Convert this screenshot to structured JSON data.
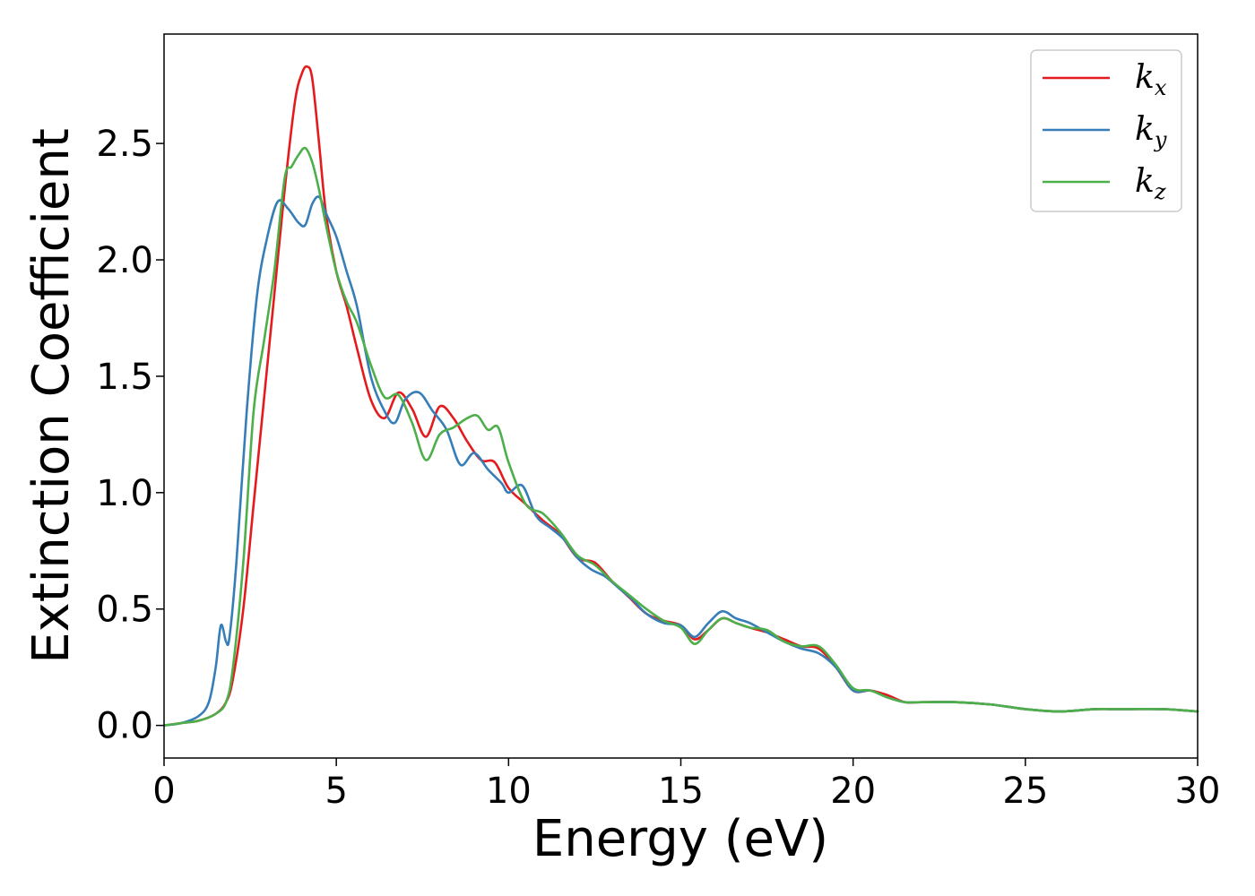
{
  "chart_data": {
    "type": "line",
    "title": "",
    "xlabel": "Energy (eV)",
    "ylabel": "Extinction Coefficient",
    "xlim": [
      0,
      30
    ],
    "ylim": [
      -0.14,
      2.97
    ],
    "xticks": [
      0,
      5,
      10,
      15,
      20,
      25,
      30
    ],
    "xtick_labels": [
      "0",
      "5",
      "10",
      "15",
      "20",
      "25",
      "30"
    ],
    "yticks": [
      0.0,
      0.5,
      1.0,
      1.5,
      2.0,
      2.5
    ],
    "ytick_labels": [
      "0.0",
      "0.5",
      "1.0",
      "1.5",
      "2.0",
      "2.5"
    ],
    "grid": false,
    "legend_position": "top-right",
    "series": [
      {
        "name": "k",
        "subscript": "x",
        "color": "#e41a1c",
        "x": [
          0,
          0.5,
          1.0,
          1.5,
          1.8,
          2.0,
          2.3,
          2.6,
          2.9,
          3.2,
          3.5,
          3.8,
          4.0,
          4.15,
          4.3,
          4.5,
          4.7,
          5.0,
          5.3,
          5.6,
          6.0,
          6.4,
          6.8,
          7.2,
          7.6,
          8.0,
          8.4,
          8.8,
          9.2,
          9.6,
          10.0,
          10.5,
          11.0,
          11.5,
          12.0,
          12.5,
          13.0,
          13.5,
          14.0,
          14.5,
          15.0,
          15.4,
          15.8,
          16.2,
          16.6,
          17.0,
          17.5,
          18.0,
          18.5,
          19.0,
          19.5,
          20.0,
          20.5,
          21.0,
          21.5,
          22.0,
          23.0,
          24.0,
          25.0,
          26.0,
          27.0,
          27.5,
          28.0,
          29.0,
          30.0
        ],
        "y": [
          0.0,
          0.01,
          0.02,
          0.05,
          0.1,
          0.2,
          0.5,
          0.95,
          1.4,
          1.85,
          2.3,
          2.68,
          2.8,
          2.83,
          2.78,
          2.5,
          2.2,
          1.95,
          1.8,
          1.62,
          1.4,
          1.32,
          1.43,
          1.36,
          1.24,
          1.37,
          1.32,
          1.22,
          1.14,
          1.13,
          1.02,
          0.95,
          0.88,
          0.82,
          0.72,
          0.7,
          0.62,
          0.55,
          0.48,
          0.45,
          0.43,
          0.37,
          0.41,
          0.46,
          0.44,
          0.42,
          0.4,
          0.37,
          0.34,
          0.33,
          0.25,
          0.15,
          0.15,
          0.13,
          0.1,
          0.1,
          0.1,
          0.09,
          0.07,
          0.06,
          0.07,
          0.07,
          0.07,
          0.07,
          0.06
        ]
      },
      {
        "name": "k",
        "subscript": "y",
        "color": "#377eb8",
        "x": [
          0,
          0.5,
          1.0,
          1.3,
          1.5,
          1.65,
          1.8,
          1.9,
          2.1,
          2.4,
          2.7,
          3.0,
          3.3,
          3.6,
          3.9,
          4.1,
          4.3,
          4.5,
          4.7,
          5.0,
          5.3,
          5.6,
          6.0,
          6.4,
          6.7,
          7.0,
          7.4,
          7.8,
          8.2,
          8.6,
          9.0,
          9.4,
          9.8,
          10.0,
          10.4,
          10.8,
          11.2,
          11.6,
          12.0,
          12.4,
          12.8,
          13.2,
          13.6,
          14.0,
          14.5,
          15.0,
          15.4,
          15.8,
          16.2,
          16.6,
          17.0,
          17.5,
          18.0,
          18.5,
          19.0,
          19.5,
          20.0,
          20.5,
          21.0,
          21.5,
          22.0,
          23.0,
          24.0,
          25.0,
          26.0,
          27.0,
          27.5,
          28.0,
          29.0,
          30.0
        ],
        "y": [
          0.0,
          0.01,
          0.04,
          0.1,
          0.25,
          0.43,
          0.36,
          0.38,
          0.7,
          1.35,
          1.85,
          2.1,
          2.25,
          2.22,
          2.16,
          2.15,
          2.24,
          2.27,
          2.2,
          2.1,
          1.95,
          1.8,
          1.5,
          1.35,
          1.3,
          1.4,
          1.43,
          1.35,
          1.27,
          1.12,
          1.17,
          1.1,
          1.04,
          1.0,
          1.03,
          0.9,
          0.85,
          0.8,
          0.72,
          0.67,
          0.64,
          0.59,
          0.54,
          0.48,
          0.44,
          0.43,
          0.38,
          0.44,
          0.49,
          0.46,
          0.44,
          0.4,
          0.36,
          0.33,
          0.31,
          0.25,
          0.15,
          0.15,
          0.12,
          0.1,
          0.1,
          0.1,
          0.09,
          0.07,
          0.06,
          0.07,
          0.07,
          0.07,
          0.07,
          0.06
        ]
      },
      {
        "name": "k",
        "subscript": "z",
        "color": "#4daf4a",
        "x": [
          0,
          0.5,
          1.0,
          1.5,
          1.8,
          2.0,
          2.3,
          2.6,
          2.9,
          3.2,
          3.5,
          3.7,
          3.9,
          4.1,
          4.3,
          4.5,
          4.7,
          5.0,
          5.3,
          5.6,
          6.0,
          6.4,
          6.8,
          7.2,
          7.6,
          8.0,
          8.4,
          8.8,
          9.1,
          9.4,
          9.7,
          10.0,
          10.5,
          11.0,
          11.5,
          12.0,
          12.5,
          13.0,
          13.5,
          14.0,
          14.5,
          15.0,
          15.4,
          15.8,
          16.2,
          16.6,
          17.0,
          17.5,
          18.0,
          18.5,
          19.0,
          19.5,
          20.0,
          20.5,
          21.0,
          21.5,
          22.0,
          23.0,
          24.0,
          25.0,
          26.0,
          27.0,
          27.5,
          28.0,
          29.0,
          30.0
        ],
        "y": [
          0.0,
          0.01,
          0.02,
          0.05,
          0.1,
          0.25,
          0.7,
          1.35,
          1.65,
          1.95,
          2.35,
          2.4,
          2.45,
          2.48,
          2.42,
          2.3,
          2.15,
          1.95,
          1.82,
          1.73,
          1.55,
          1.41,
          1.42,
          1.3,
          1.14,
          1.25,
          1.28,
          1.32,
          1.33,
          1.27,
          1.28,
          1.13,
          0.95,
          0.91,
          0.83,
          0.73,
          0.69,
          0.62,
          0.56,
          0.5,
          0.45,
          0.42,
          0.35,
          0.41,
          0.46,
          0.44,
          0.42,
          0.41,
          0.36,
          0.34,
          0.34,
          0.26,
          0.16,
          0.15,
          0.12,
          0.1,
          0.1,
          0.1,
          0.09,
          0.07,
          0.06,
          0.07,
          0.07,
          0.07,
          0.07,
          0.06
        ]
      }
    ]
  }
}
